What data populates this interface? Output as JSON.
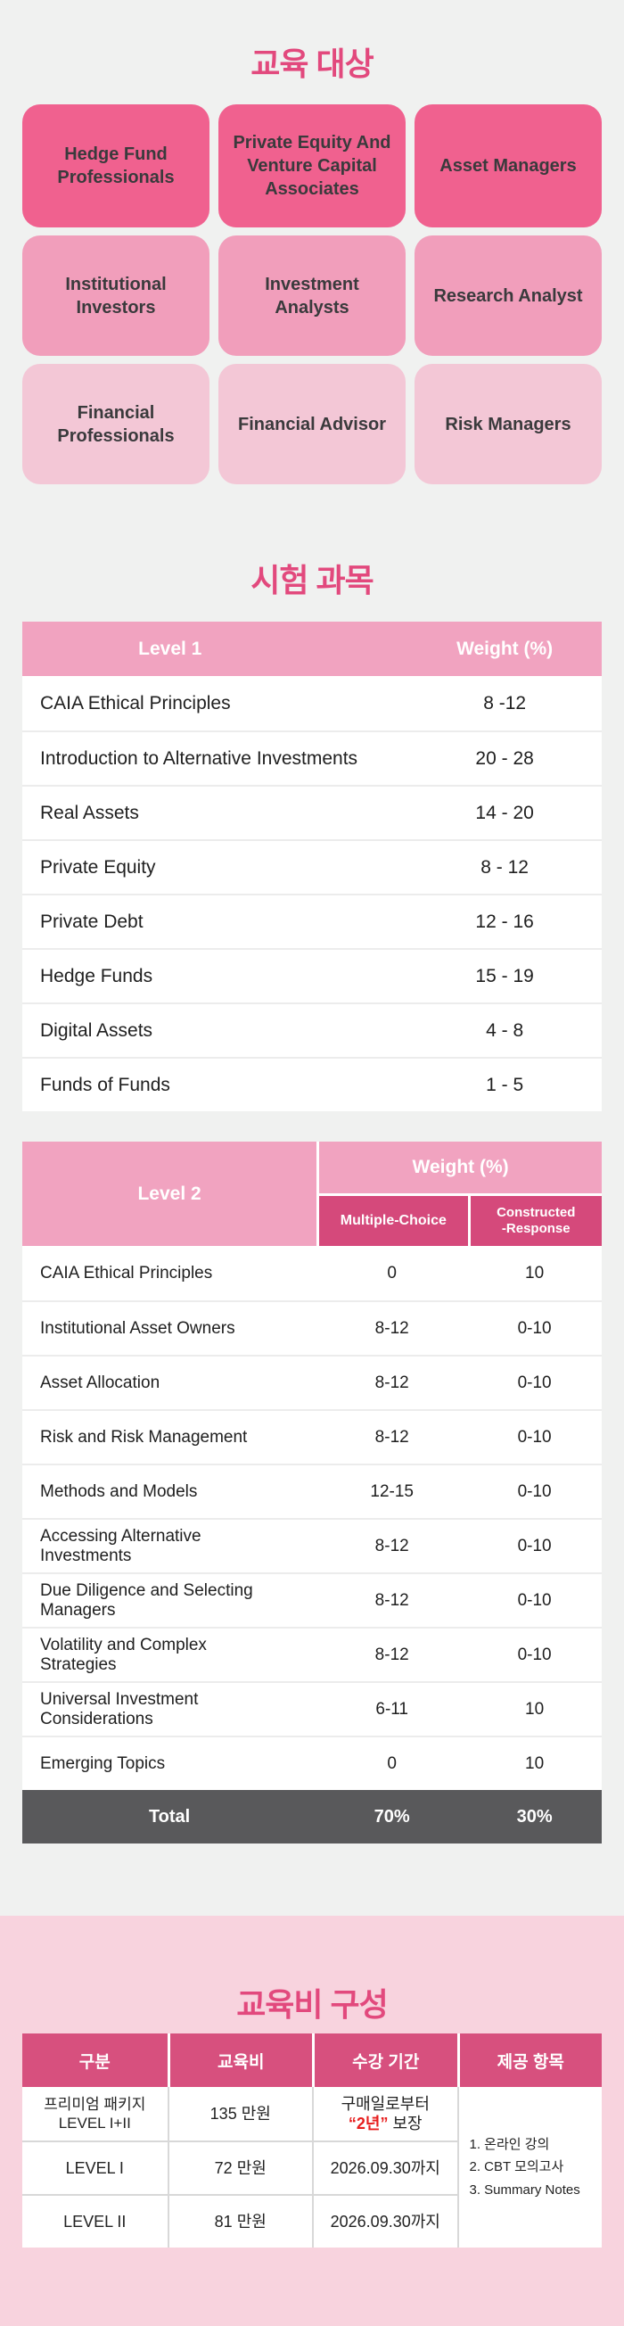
{
  "theme": {
    "page_bg": "#F0F1F0",
    "accent_pink": "#E2497D",
    "card_dark_pink": "#F0618F",
    "card_medium_pink": "#F19EBB",
    "card_light_pink": "#F3C7D6",
    "table_header_pink": "#F1A3C0",
    "subheader_dark_pink": "#D5497B",
    "total_row_gray": "#59595B",
    "pricing_section_bg": "#F8D3DE",
    "highlight_red": "#E71E1E"
  },
  "audience": {
    "title": "교육 대상",
    "cards": [
      {
        "label": "Hedge Fund Professionals"
      },
      {
        "label": "Private Equity And Venture Capital Associates"
      },
      {
        "label": "Asset Managers"
      },
      {
        "label": "Institutional Investors"
      },
      {
        "label": "Investment Analysts"
      },
      {
        "label": "Research Analyst"
      },
      {
        "label": "Financial Professionals"
      },
      {
        "label": "Financial Advisor"
      },
      {
        "label": "Risk Managers"
      }
    ]
  },
  "exam": {
    "title": "시험 과목",
    "level1": {
      "header_subject": "Level 1",
      "header_weight": "Weight (%)",
      "rows": [
        {
          "subject": "CAIA Ethical Principles",
          "weight": "8 -12"
        },
        {
          "subject": "Introduction to Alternative Investments",
          "weight": "20 - 28"
        },
        {
          "subject": "Real Assets",
          "weight": "14 - 20"
        },
        {
          "subject": "Private Equity",
          "weight": "8 - 12"
        },
        {
          "subject": "Private Debt",
          "weight": "12 - 16"
        },
        {
          "subject": "Hedge Funds",
          "weight": "15 - 19"
        },
        {
          "subject": "Digital Assets",
          "weight": "4 - 8"
        },
        {
          "subject": "Funds of Funds",
          "weight": "1 - 5"
        }
      ]
    },
    "level2": {
      "header_subject": "Level 2",
      "header_weight_group": "Weight (%)",
      "col_multiple_choice": "Multiple-Choice",
      "col_constructed_line1": "Constructed",
      "col_constructed_line2": "-Response",
      "rows": [
        {
          "subject": "CAIA Ethical Principles",
          "mc": "0",
          "cr": "10"
        },
        {
          "subject": "Institutional Asset Owners",
          "mc": "8-12",
          "cr": "0-10"
        },
        {
          "subject": "Asset Allocation",
          "mc": "8-12",
          "cr": "0-10"
        },
        {
          "subject": "Risk and Risk Management",
          "mc": "8-12",
          "cr": "0-10"
        },
        {
          "subject": "Methods and Models",
          "mc": "12-15",
          "cr": "0-10"
        },
        {
          "subject": "Accessing Alternative Investments",
          "mc": "8-12",
          "cr": "0-10"
        },
        {
          "subject": "Due Diligence and Selecting Managers",
          "mc": "8-12",
          "cr": "0-10"
        },
        {
          "subject": "Volatility and Complex Strategies",
          "mc": "8-12",
          "cr": "0-10"
        },
        {
          "subject": "Universal Investment Considerations",
          "mc": "6-11",
          "cr": "10"
        },
        {
          "subject": "Emerging Topics",
          "mc": "0",
          "cr": "10"
        }
      ],
      "total": {
        "label": "Total",
        "mc": "70%",
        "cr": "30%"
      }
    }
  },
  "pricing": {
    "title": "교육비 구성",
    "columns": [
      "구분",
      "교육비",
      "수강 기간",
      "제공 항목"
    ],
    "rows": [
      {
        "name_line1": "프리미엄 패키지",
        "name_line2": "LEVEL I+II",
        "fee": "135 만원",
        "period_line1": "구매일로부터",
        "period_highlight": "“2년”",
        "period_suffix": " 보장"
      },
      {
        "name": "LEVEL I",
        "fee": "72 만원",
        "period": "2026.09.30까지"
      },
      {
        "name": "LEVEL II",
        "fee": "81 만원",
        "period": "2026.09.30까지"
      }
    ],
    "provided_items": [
      "1. 온라인 강의",
      "2. CBT 모의고사",
      "3. Summary Notes"
    ]
  }
}
